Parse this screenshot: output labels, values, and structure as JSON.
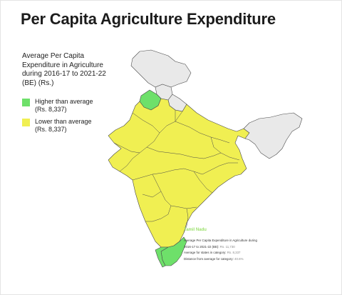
{
  "title": "Per Capita Agriculture Expenditure",
  "legend": {
    "heading": "Average Per Capita Expenditure in Agriculture during 2016-17 to 2021-22 (BE) (Rs.)",
    "items": [
      {
        "label": "Higher than average",
        "value": "(Rs. 8,337)",
        "color": "#6ee06a"
      },
      {
        "label": "Lower than average",
        "value": "(Rs. 8,337)",
        "color": "#f0ef52"
      }
    ]
  },
  "colors": {
    "higher": "#6ee06a",
    "lower": "#f0ef52",
    "nodata": "#e9e9e9",
    "border": "#4a4a4a"
  },
  "tooltip": {
    "state": "Tamil Nadu",
    "line1": "Average Per Capita Expenditure in Agriculture during",
    "line2_label": "2016-17 to 2021-22 (BE):",
    "line2_value": "Rs. 11,730",
    "line3_label": "Average for states in category:",
    "line3_value": "Rs. 8,337",
    "line4_label": "Distance from average for category:",
    "line4_value": "40.6%"
  }
}
